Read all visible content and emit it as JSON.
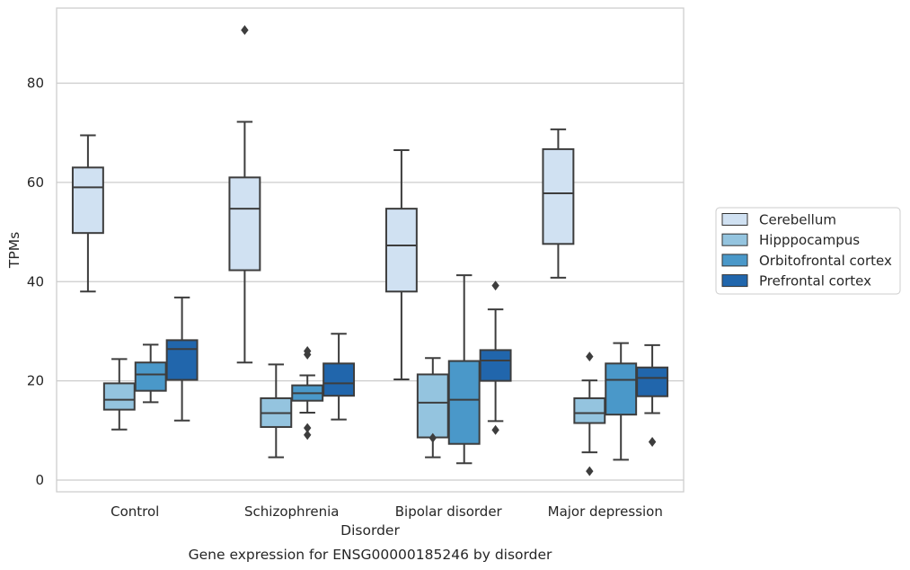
{
  "chart_data": {
    "type": "box",
    "caption": "Gene expression for ENSG00000185246 by disorder",
    "xlabel": "Disorder",
    "ylabel": "TPMs",
    "ylim": [
      -2.5,
      95
    ],
    "yticks": [
      0,
      20,
      40,
      60,
      80
    ],
    "grid": "horizontal",
    "legend_position": "right",
    "categories": [
      "Control",
      "Schizophrenia",
      "Bipolar disorder",
      "Major depression"
    ],
    "series": [
      {
        "name": "Cerebellum",
        "color": "#d0e1f2",
        "boxes": [
          {
            "whisker_low": 38.0,
            "q1": 49.8,
            "median": 59.0,
            "q3": 63.0,
            "whisker_high": 69.5,
            "outliers": []
          },
          {
            "whisker_low": 23.7,
            "q1": 42.3,
            "median": 54.7,
            "q3": 61.0,
            "whisker_high": 72.2,
            "outliers": [
              90.7
            ]
          },
          {
            "whisker_low": 20.3,
            "q1": 38.0,
            "median": 47.3,
            "q3": 54.7,
            "whisker_high": 66.5,
            "outliers": []
          },
          {
            "whisker_low": 40.8,
            "q1": 47.6,
            "median": 57.8,
            "q3": 66.7,
            "whisker_high": 70.7,
            "outliers": []
          }
        ]
      },
      {
        "name": "Hipppocampus",
        "color": "#94c4df",
        "boxes": [
          {
            "whisker_low": 10.2,
            "q1": 14.2,
            "median": 16.2,
            "q3": 19.5,
            "whisker_high": 24.4,
            "outliers": []
          },
          {
            "whisker_low": 4.6,
            "q1": 10.7,
            "median": 13.5,
            "q3": 16.5,
            "whisker_high": 23.3,
            "outliers": []
          },
          {
            "whisker_low": 4.6,
            "q1": 8.6,
            "median": 15.6,
            "q3": 21.3,
            "whisker_high": 24.6,
            "outliers": [
              8.5
            ]
          },
          {
            "whisker_low": 5.6,
            "q1": 11.5,
            "median": 13.5,
            "q3": 16.5,
            "whisker_high": 20.1,
            "outliers": [
              1.8,
              24.9
            ]
          }
        ]
      },
      {
        "name": "Orbitofrontal cortex",
        "color": "#4a98c9",
        "boxes": [
          {
            "whisker_low": 15.7,
            "q1": 18.0,
            "median": 21.3,
            "q3": 23.7,
            "whisker_high": 27.3,
            "outliers": []
          },
          {
            "whisker_low": 13.6,
            "q1": 16.0,
            "median": 17.5,
            "q3": 19.1,
            "whisker_high": 21.1,
            "outliers": [
              9.1,
              10.5,
              25.3,
              26.0
            ]
          },
          {
            "whisker_low": 3.4,
            "q1": 7.3,
            "median": 16.2,
            "q3": 24.0,
            "whisker_high": 41.3,
            "outliers": []
          },
          {
            "whisker_low": 4.1,
            "q1": 13.2,
            "median": 20.2,
            "q3": 23.5,
            "whisker_high": 27.6,
            "outliers": []
          }
        ]
      },
      {
        "name": "Prefrontal cortex",
        "color": "#2166ac",
        "boxes": [
          {
            "whisker_low": 12.0,
            "q1": 20.2,
            "median": 26.4,
            "q3": 28.2,
            "whisker_high": 36.8,
            "outliers": []
          },
          {
            "whisker_low": 12.2,
            "q1": 17.0,
            "median": 19.5,
            "q3": 23.5,
            "whisker_high": 29.5,
            "outliers": []
          },
          {
            "whisker_low": 11.9,
            "q1": 20.0,
            "median": 24.1,
            "q3": 26.2,
            "whisker_high": 34.4,
            "outliers": [
              10.1,
              39.2
            ]
          },
          {
            "whisker_low": 13.5,
            "q1": 16.9,
            "median": 20.6,
            "q3": 22.7,
            "whisker_high": 27.2,
            "outliers": [
              7.7
            ]
          }
        ]
      }
    ]
  }
}
